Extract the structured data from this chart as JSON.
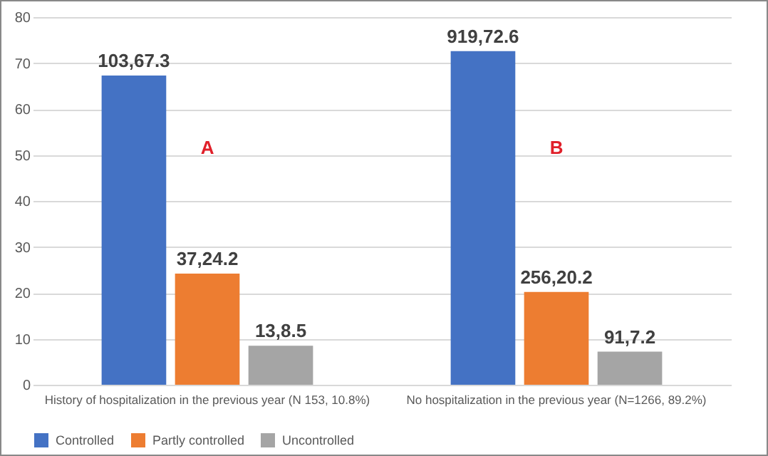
{
  "chart_data": {
    "type": "bar",
    "categories": [
      "History of hospitalization in the previous year (N 153, 10.8%)",
      "No hospitalization in the previous year (N=1266, 89.2%)"
    ],
    "series": [
      {
        "name": "Controlled",
        "color": "#4472c4",
        "values": [
          67.3,
          72.6
        ],
        "value_labels": [
          "103,67.3",
          "919,72.6"
        ]
      },
      {
        "name": "Partly controlled",
        "color": "#ed7d31",
        "values": [
          24.2,
          20.2
        ],
        "value_labels": [
          "37,24.2",
          "256,20.2"
        ]
      },
      {
        "name": "Uncontrolled",
        "color": "#a5a5a5",
        "values": [
          8.5,
          7.2
        ],
        "value_labels": [
          "13,8.5",
          "91,7.2"
        ]
      }
    ],
    "annotations": [
      "A",
      "B"
    ],
    "ylim": [
      0,
      80
    ],
    "yticks": [
      0,
      10,
      20,
      30,
      40,
      50,
      60,
      70,
      80
    ],
    "grid": "y",
    "legend": "bottom"
  }
}
